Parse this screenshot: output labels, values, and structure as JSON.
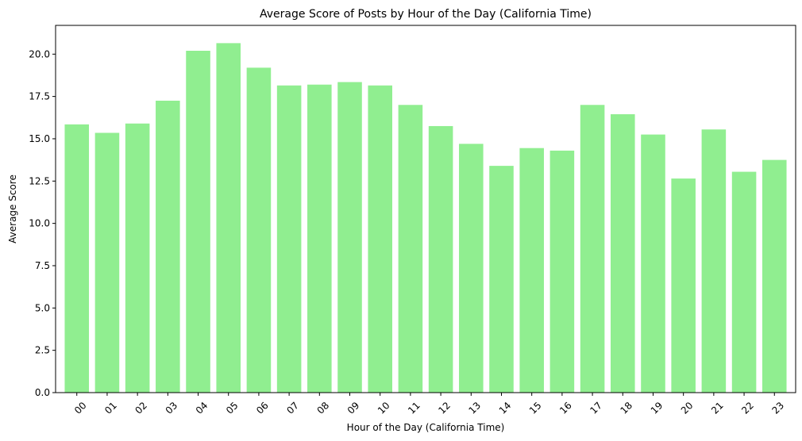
{
  "chart_data": {
    "type": "bar",
    "title": "Average Score of Posts by Hour of the Day (California Time)",
    "xlabel": "Hour of the Day (California Time)",
    "ylabel": "Average Score",
    "categories": [
      "00",
      "01",
      "02",
      "03",
      "04",
      "05",
      "06",
      "07",
      "08",
      "09",
      "10",
      "11",
      "12",
      "13",
      "14",
      "15",
      "16",
      "17",
      "18",
      "19",
      "20",
      "21",
      "22",
      "23"
    ],
    "values": [
      15.85,
      15.35,
      15.9,
      17.25,
      20.2,
      20.65,
      19.2,
      18.15,
      18.2,
      18.35,
      18.15,
      17.0,
      15.75,
      14.7,
      13.4,
      14.45,
      14.3,
      17.0,
      16.45,
      15.25,
      12.65,
      15.55,
      13.05,
      13.75
    ],
    "ylim": [
      0,
      21.7
    ],
    "yticks": [
      "0.0",
      "2.5",
      "5.0",
      "7.5",
      "10.0",
      "12.5",
      "15.0",
      "17.5",
      "20.0"
    ],
    "grid": false,
    "colors": {
      "bar": "#90ee90",
      "axis": "#000000",
      "background": "#ffffff"
    }
  }
}
